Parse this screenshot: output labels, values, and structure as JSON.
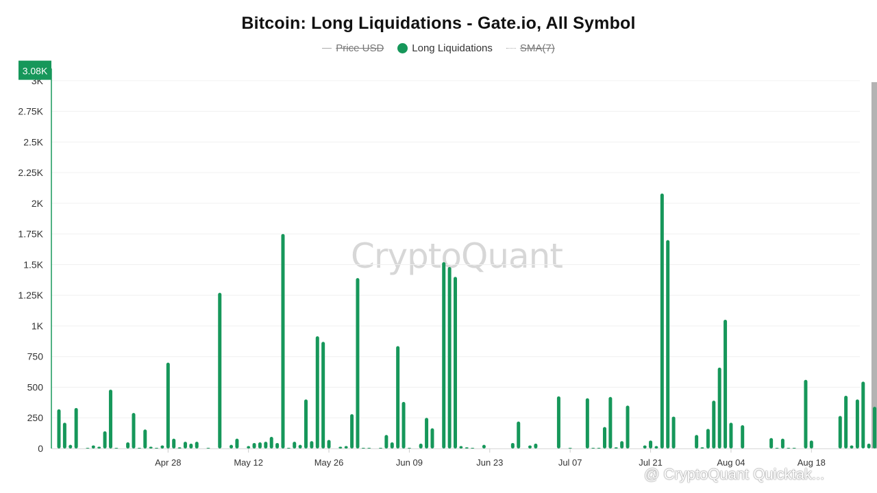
{
  "title": "Bitcoin: Long Liquidations - Gate.io, All Symbol",
  "legend": [
    {
      "label": "Price USD",
      "enabled": false,
      "style": "line",
      "color": "#aaaaaa"
    },
    {
      "label": "Long Liquidations",
      "enabled": true,
      "style": "dot",
      "color": "#16975a"
    },
    {
      "label": "SMA(7)",
      "enabled": false,
      "style": "dotted",
      "color": "#aaaaaa"
    }
  ],
  "watermark": "CryptoQuant",
  "footer_watermark": "@ CryptoQuant Quicktak...",
  "colors": {
    "bar": "#16975a",
    "highlight_bar": "#0e5c36",
    "highlight_band": "#b3b3b3",
    "badge_bg": "#16975a"
  },
  "chart_data": {
    "type": "bar",
    "title": "Bitcoin: Long Liquidations - Gate.io, All Symbol",
    "series": [
      {
        "name": "Long Liquidations"
      }
    ],
    "x_axis": {
      "start_date": "2025-04-09",
      "end_date": "2025-08-25",
      "tick_labels": [
        "Apr 28",
        "May 12",
        "May 26",
        "Jun 09",
        "Jun 23",
        "Jul 07",
        "Jul 21",
        "Aug 04",
        "Aug 18"
      ]
    },
    "y_axis": {
      "ylim": [
        0,
        3100
      ],
      "ticks": [
        0,
        250,
        500,
        750,
        1000,
        1250,
        1500,
        1750,
        2000,
        2250,
        2500,
        2750,
        3000
      ],
      "tick_labels": [
        "0",
        "250",
        "500",
        "750",
        "1K",
        "1.25K",
        "1.5K",
        "1.75K",
        "2K",
        "2.25K",
        "2.5K",
        "2.75K",
        "3K"
      ]
    },
    "last_value_badge": "3.08K",
    "grid": true,
    "values": [
      320,
      210,
      30,
      330,
      0,
      5,
      25,
      15,
      140,
      480,
      5,
      0,
      50,
      290,
      5,
      155,
      15,
      5,
      25,
      700,
      80,
      10,
      55,
      40,
      55,
      0,
      5,
      0,
      1270,
      0,
      30,
      80,
      0,
      20,
      45,
      50,
      55,
      95,
      45,
      1750,
      5,
      55,
      30,
      400,
      60,
      915,
      870,
      70,
      0,
      15,
      20,
      280,
      1390,
      5,
      5,
      0,
      5,
      110,
      50,
      835,
      380,
      5,
      0,
      40,
      250,
      165,
      0,
      1520,
      1480,
      1400,
      20,
      10,
      5,
      0,
      30,
      0,
      0,
      0,
      0,
      45,
      220,
      0,
      25,
      40,
      0,
      0,
      0,
      425,
      0,
      5,
      0,
      0,
      410,
      5,
      5,
      175,
      420,
      10,
      60,
      350,
      0,
      0,
      25,
      65,
      20,
      2080,
      1700,
      260,
      0,
      0,
      0,
      110,
      10,
      160,
      390,
      660,
      1050,
      210,
      0,
      190,
      0,
      0,
      0,
      0,
      85,
      5,
      80,
      5,
      5,
      0,
      560,
      65,
      0,
      0,
      0,
      0,
      265,
      430,
      25,
      400,
      545,
      40,
      340,
      3080
    ]
  }
}
